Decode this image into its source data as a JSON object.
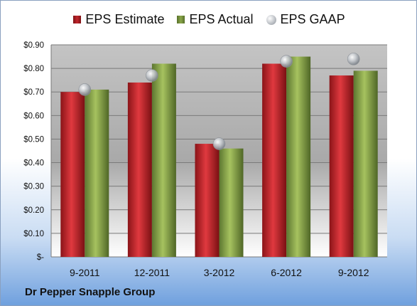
{
  "chart_data": {
    "type": "bar",
    "categories": [
      "9-2011",
      "12-2011",
      "3-2012",
      "6-2012",
      "9-2012"
    ],
    "series": [
      {
        "name": "EPS Estimate",
        "kind": "bar",
        "color": "#c2262c",
        "values": [
          0.7,
          0.74,
          0.48,
          0.82,
          0.77
        ]
      },
      {
        "name": "EPS Actual",
        "kind": "bar",
        "color": "#8aa64a",
        "values": [
          0.71,
          0.82,
          0.46,
          0.85,
          0.79
        ]
      },
      {
        "name": "EPS GAAP",
        "kind": "marker",
        "color": "#bfc3c8",
        "values": [
          0.71,
          0.77,
          0.48,
          0.83,
          0.84
        ]
      }
    ],
    "ylim": [
      0,
      0.9
    ],
    "yticks": [
      0,
      0.1,
      0.2,
      0.3,
      0.4,
      0.5,
      0.6,
      0.7,
      0.8,
      0.9
    ],
    "ytick_labels": [
      "$-",
      "$0.10",
      "$0.20",
      "$0.30",
      "$0.40",
      "$0.50",
      "$0.60",
      "$0.70",
      "$0.80",
      "$0.90"
    ],
    "grid": true,
    "legend_position": "top",
    "title": "",
    "xlabel": "",
    "ylabel": ""
  },
  "footer": {
    "company": "Dr Pepper Snapple Group"
  }
}
